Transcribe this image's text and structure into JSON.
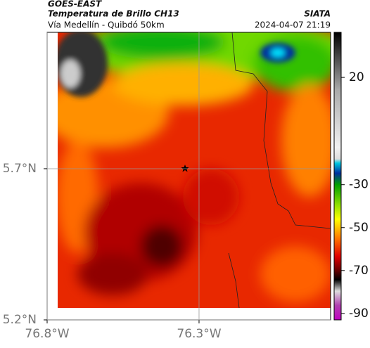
{
  "header": {
    "title": "GOES-EAST",
    "subtitle": "Temperatura de Brillo CH13",
    "source": "SIATA",
    "location": "Vía Medellín - Quibdó 50km",
    "timestamp": "2024-04-07 21:19"
  },
  "map": {
    "xlim": [
      -76.8,
      -75.867
    ],
    "ylim": [
      5.2,
      6.151
    ],
    "xticks": [
      {
        "value": -76.8,
        "label": "76.8°W"
      },
      {
        "value": -76.3,
        "label": "76.3°W"
      }
    ],
    "yticks": [
      {
        "value": 5.7,
        "label": "5.7°N"
      },
      {
        "value": 5.2,
        "label": "5.2°N"
      }
    ],
    "grid": true
  },
  "colorbar": {
    "lim": [
      -93,
      41
    ],
    "ticks": [
      20,
      -30,
      -50,
      -70,
      -90
    ]
  }
}
